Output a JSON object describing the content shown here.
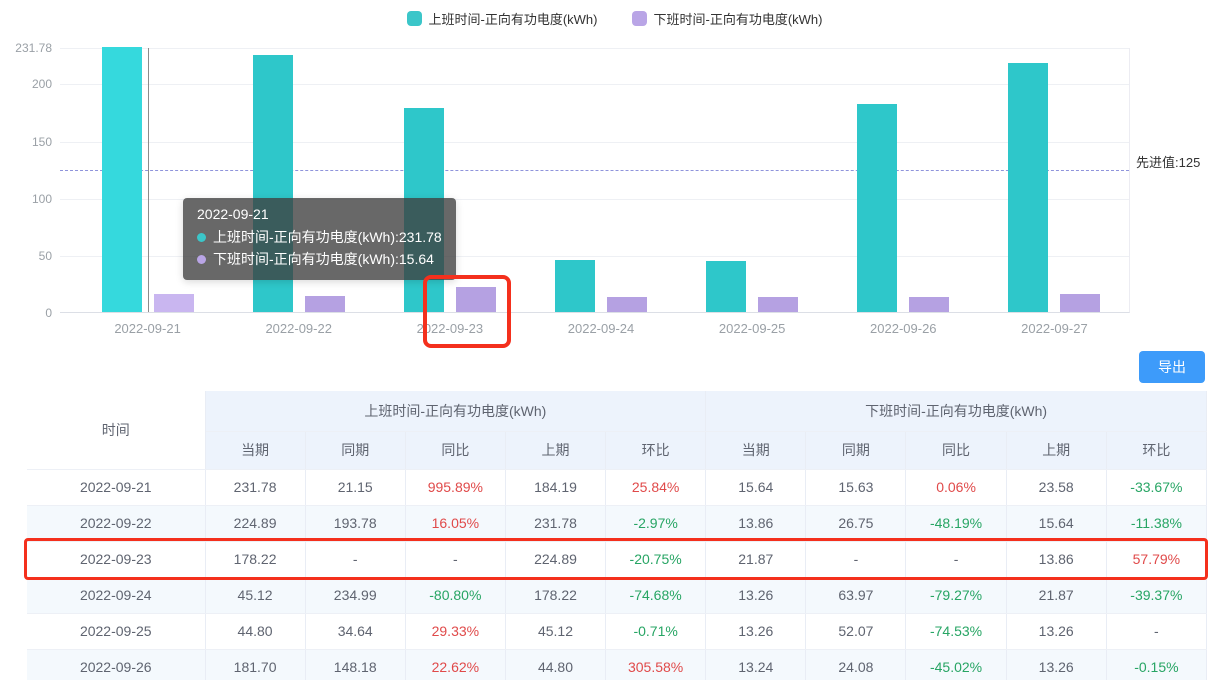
{
  "colors": {
    "teal": "#2ec7ca",
    "teal_highlight": "#35d9dd",
    "purple": "#b5a1e2",
    "purple_highlight": "#c9b6f0",
    "markline": "#8f94db",
    "annotation_red": "#f4301d",
    "export_blue": "#3d9bfa",
    "pct_up_red": "#e04a4a",
    "pct_down_green": "#27a564"
  },
  "legend": {
    "items": [
      {
        "label": "上班时间-正向有功电度(kWh)",
        "color": "#3bc6c9"
      },
      {
        "label": "下班时间-正向有功电度(kWh)",
        "color": "#b9a5e6"
      }
    ]
  },
  "chart_data": {
    "type": "bar",
    "categories": [
      "2022-09-21",
      "2022-09-22",
      "2022-09-23",
      "2022-09-24",
      "2022-09-25",
      "2022-09-26",
      "2022-09-27"
    ],
    "series": [
      {
        "name": "上班时间-正向有功电度(kWh)",
        "color": "#2ec7ca",
        "values": [
          231.78,
          224.89,
          178.22,
          45.12,
          44.8,
          181.7,
          218.0
        ]
      },
      {
        "name": "下班时间-正向有功电度(kWh)",
        "color": "#b5a1e2",
        "values": [
          15.64,
          13.86,
          21.87,
          13.26,
          13.26,
          13.24,
          15.5
        ]
      }
    ],
    "ylim": [
      0,
      231.78
    ],
    "yticks": [
      231.78,
      200,
      150,
      100,
      50,
      0
    ],
    "grid": true,
    "legend_position": "top",
    "markline": {
      "value": 125,
      "label": "先进值:125"
    }
  },
  "tooltip": {
    "title": "2022-09-21",
    "items": [
      {
        "label": "上班时间-正向有功电度(kWh)",
        "value": "231.78",
        "color": "#3bc6c9"
      },
      {
        "label": "下班时间-正向有功电度(kWh)",
        "value": "15.64",
        "color": "#b9a5e6"
      }
    ]
  },
  "toolbar": {
    "export_label": "导出"
  },
  "table": {
    "time_header": "时间",
    "group_headers": [
      "上班时间-正向有功电度(kWh)",
      "下班时间-正向有功电度(kWh)"
    ],
    "sub_headers": [
      "当期",
      "同期",
      "同比",
      "上期",
      "环比"
    ],
    "rows": [
      {
        "date": "2022-09-21",
        "cells": [
          "231.78",
          "21.15",
          "995.89%",
          "184.19",
          "25.84%",
          "15.64",
          "15.63",
          "0.06%",
          "23.58",
          "-33.67%"
        ],
        "highlighted": false
      },
      {
        "date": "2022-09-22",
        "cells": [
          "224.89",
          "193.78",
          "16.05%",
          "231.78",
          "-2.97%",
          "13.86",
          "26.75",
          "-48.19%",
          "15.64",
          "-11.38%"
        ],
        "highlighted": false
      },
      {
        "date": "2022-09-23",
        "cells": [
          "178.22",
          "-",
          "-",
          "224.89",
          "-20.75%",
          "21.87",
          "-",
          "-",
          "13.86",
          "57.79%"
        ],
        "highlighted": true
      },
      {
        "date": "2022-09-24",
        "cells": [
          "45.12",
          "234.99",
          "-80.80%",
          "178.22",
          "-74.68%",
          "13.26",
          "63.97",
          "-79.27%",
          "21.87",
          "-39.37%"
        ],
        "highlighted": false
      },
      {
        "date": "2022-09-25",
        "cells": [
          "44.80",
          "34.64",
          "29.33%",
          "45.12",
          "-0.71%",
          "13.26",
          "52.07",
          "-74.53%",
          "13.26",
          "-"
        ],
        "highlighted": false
      },
      {
        "date": "2022-09-26",
        "cells": [
          "181.70",
          "148.18",
          "22.62%",
          "44.80",
          "305.58%",
          "13.24",
          "24.08",
          "-45.02%",
          "13.26",
          "-0.15%"
        ],
        "highlighted": false
      }
    ]
  }
}
